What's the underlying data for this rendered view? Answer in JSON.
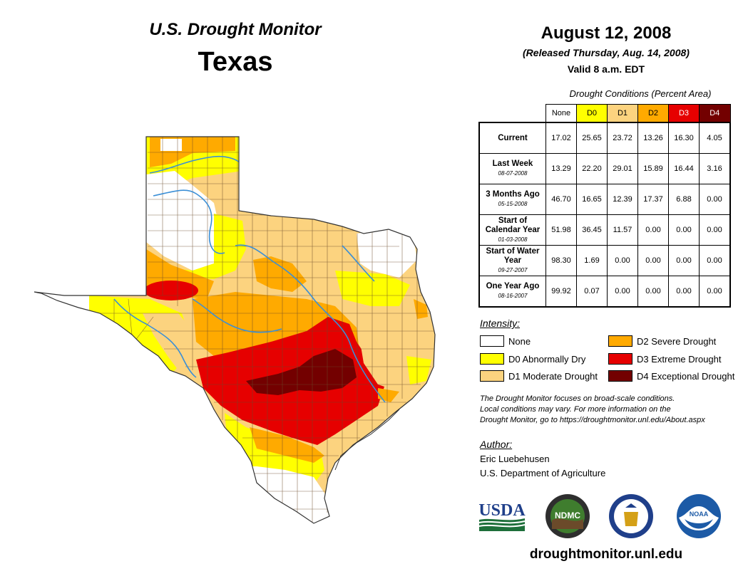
{
  "header": {
    "monitor_title": "U.S. Drought Monitor",
    "state": "Texas",
    "date": "August 12, 2008",
    "released": "(Released Thursday, Aug. 14, 2008)",
    "valid": "Valid 8 a.m. EDT"
  },
  "table": {
    "caption": "Drought Conditions (Percent Area)",
    "columns": [
      "None",
      "D0",
      "D1",
      "D2",
      "D3",
      "D4"
    ],
    "rows": [
      {
        "label": "Current",
        "date": "",
        "values": [
          "17.02",
          "25.65",
          "23.72",
          "13.26",
          "16.30",
          "4.05"
        ]
      },
      {
        "label": "Last Week",
        "date": "08-07-2008",
        "values": [
          "13.29",
          "22.20",
          "29.01",
          "15.89",
          "16.44",
          "3.16"
        ]
      },
      {
        "label": "3 Months Ago",
        "date": "05-15-2008",
        "values": [
          "46.70",
          "16.65",
          "12.39",
          "17.37",
          "6.88",
          "0.00"
        ]
      },
      {
        "label": "Start of Calendar Year",
        "date": "01-03-2008",
        "values": [
          "51.98",
          "36.45",
          "11.57",
          "0.00",
          "0.00",
          "0.00"
        ]
      },
      {
        "label": "Start of Water Year",
        "date": "09-27-2007",
        "values": [
          "98.30",
          "1.69",
          "0.00",
          "0.00",
          "0.00",
          "0.00"
        ]
      },
      {
        "label": "One Year Ago",
        "date": "08-16-2007",
        "values": [
          "99.92",
          "0.07",
          "0.00",
          "0.00",
          "0.00",
          "0.00"
        ]
      }
    ]
  },
  "legend": {
    "title": "Intensity:",
    "items": [
      {
        "label": "None",
        "color": "#ffffff"
      },
      {
        "label": "D0 Abnormally Dry",
        "color": "#ffff00"
      },
      {
        "label": "D1 Moderate Drought",
        "color": "#fcd37f"
      },
      {
        "label": "D2 Severe Drought",
        "color": "#ffaa00"
      },
      {
        "label": "D3 Extreme Drought",
        "color": "#e60000"
      },
      {
        "label": "D4 Exceptional Drought",
        "color": "#730000"
      }
    ]
  },
  "colors": {
    "none": "#ffffff",
    "d0": "#ffff00",
    "d1": "#fcd37f",
    "d2": "#ffaa00",
    "d3": "#e60000",
    "d4": "#730000",
    "river": "#3b8fd6",
    "county_line": "#6b4a2a"
  },
  "disclaimer": [
    "The Drought Monitor focuses on broad-scale conditions.",
    "Local conditions may vary. For more information on the",
    "Drought Monitor, go to https://droughtmonitor.unl.edu/About.aspx"
  ],
  "author": {
    "title": "Author:",
    "name": "Eric Luebehusen",
    "org": "U.S. Department of Agriculture"
  },
  "logos": {
    "usda": "USDA",
    "ndmc": "NDMC",
    "noaa": "NOAA"
  },
  "website": "droughtmonitor.unl.edu"
}
